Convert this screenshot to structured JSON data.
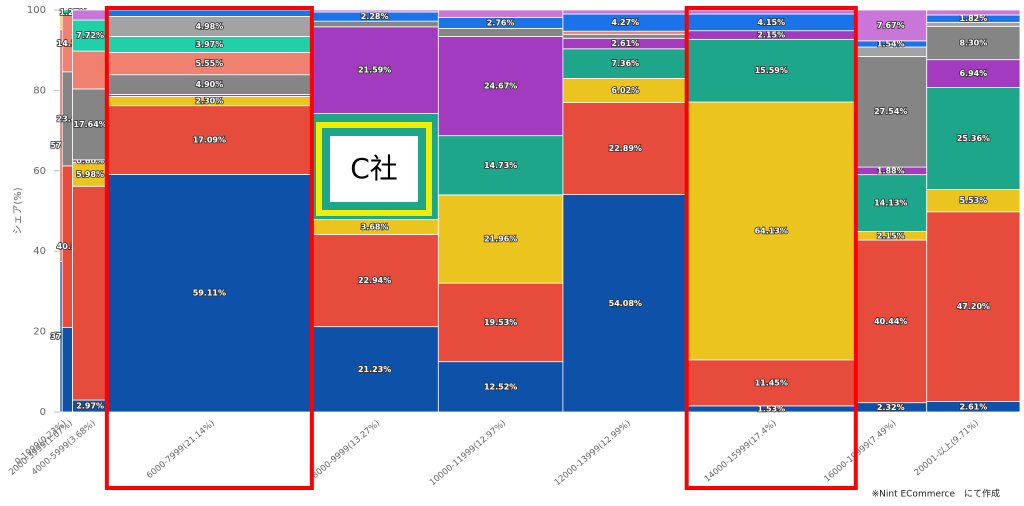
{
  "chart_data": {
    "type": "marimekko",
    "y_label": "シェア(%)",
    "categories": [
      "0-1999(0.23%)",
      "2000-3999(1.07%)",
      "4000-5999(3.68%)",
      "6000-7999(21.14%)",
      "8000-9999(13.27%)",
      "10000-11999(12.97%)",
      "12000-13999(12.99%)",
      "14000-15999(17.4%)",
      "16000-19999(7.49%)",
      "20001-以上(9.71%)"
    ],
    "widths": [
      0.23,
      1.07,
      3.68,
      21.14,
      13.27,
      12.97,
      12.99,
      17.4,
      7.49,
      9.71
    ],
    "ylim": [
      0,
      100
    ],
    "yticks": [
      0,
      20,
      40,
      60,
      80,
      100
    ],
    "series": [
      {
        "color": "#0d52a8",
        "values": [
          37.45,
          21.02,
          2.97,
          59.11,
          21.23,
          12.52,
          54.08,
          1.53,
          2.32,
          2.61
        ],
        "value_labels": [
          "37.45%",
          null,
          "2.97%",
          "59.11%",
          "21.23%",
          "12.52%",
          "54.08%",
          "1.53%",
          "2.32%",
          "2.61%"
        ]
      },
      {
        "color": "#e64b3c",
        "values": [
          57.66,
          40.2,
          53.18,
          17.09,
          22.94,
          19.53,
          22.89,
          11.45,
          40.44,
          47.2
        ],
        "value_labels": [
          "57.66%",
          "40.20%",
          null,
          "17.09%",
          "22.94%",
          "19.53%",
          "22.89%",
          "11.45%",
          "40.44%",
          "47.20%"
        ]
      },
      {
        "color": "#ecc41e",
        "values": [
          4.89,
          null,
          5.98,
          2.3,
          3.68,
          21.96,
          6.02,
          64.13,
          2.15,
          5.53
        ],
        "value_labels": [
          null,
          null,
          "5.98%",
          "2.30%",
          "3.68%",
          "21.96%",
          "6.02%",
          "64.13%",
          "2.15%",
          "5.53%"
        ]
      },
      {
        "color": "#1ea68a",
        "values": [
          null,
          null,
          null,
          null,
          26.38,
          14.73,
          7.36,
          15.59,
          14.13,
          25.36
        ],
        "value_labels": [
          null,
          null,
          null,
          null,
          null,
          "14.73%",
          "7.36%",
          "15.59%",
          "14.13%",
          "25.36%"
        ]
      },
      {
        "color": "#a23bbf",
        "values": [
          null,
          null,
          0.6,
          0.5,
          21.59,
          24.67,
          2.61,
          2.15,
          1.88,
          6.94
        ],
        "value_labels": [
          null,
          null,
          "0.60%",
          null,
          "21.59%",
          "24.67%",
          "2.61%",
          "2.15%",
          "1.88%",
          "6.94%"
        ]
      },
      {
        "color": "#858585",
        "values": [
          null,
          23.41,
          17.64,
          4.9,
          1.4,
          2.0,
          1.0,
          null,
          27.54,
          8.3
        ],
        "value_labels": [
          null,
          "23.41%",
          "17.64%",
          "4.90%",
          null,
          null,
          null,
          null,
          "27.54%",
          "8.30%"
        ]
      },
      {
        "color": "#f08070",
        "values": [
          null,
          14.1,
          9.41,
          5.55,
          null,
          null,
          0.77,
          null,
          null,
          null
        ],
        "value_labels": [
          null,
          "14.10%",
          null,
          "5.55%",
          null,
          null,
          null,
          null,
          null,
          null
        ]
      },
      {
        "color": "#20d1a8",
        "values": [
          null,
          1.27,
          7.72,
          3.97,
          null,
          null,
          null,
          null,
          null,
          null
        ],
        "value_labels": [
          null,
          "1.27%",
          "7.72%",
          "3.97%",
          null,
          null,
          null,
          null,
          null,
          null
        ]
      },
      {
        "color": "#a3a3a3",
        "values": [
          null,
          null,
          null,
          4.98,
          null,
          null,
          null,
          null,
          2.33,
          1.0
        ],
        "value_labels": [
          null,
          null,
          null,
          "4.98%",
          null,
          null,
          null,
          null,
          null,
          null
        ]
      },
      {
        "color": "#1a73e8",
        "values": [
          null,
          null,
          null,
          1.6,
          2.28,
          2.76,
          4.27,
          4.15,
          1.54,
          1.82
        ],
        "value_labels": [
          null,
          null,
          null,
          null,
          "2.28%",
          "2.76%",
          "4.27%",
          "4.15%",
          "1.54%",
          "1.82%"
        ]
      },
      {
        "color": "#c876d8",
        "values": [
          null,
          null,
          2.5,
          null,
          0.5,
          1.83,
          1.0,
          1.0,
          7.67,
          1.24
        ],
        "value_labels": [
          null,
          null,
          null,
          null,
          null,
          null,
          null,
          null,
          "7.67%",
          null
        ]
      }
    ],
    "annotation": "C社",
    "note": "※Nint ECommerce　にて作成"
  }
}
